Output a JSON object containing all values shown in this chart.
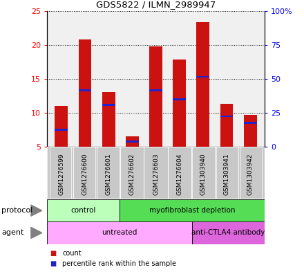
{
  "title": "GDS5822 / ILMN_2989947",
  "samples": [
    "GSM1276599",
    "GSM1276600",
    "GSM1276601",
    "GSM1276602",
    "GSM1276603",
    "GSM1276604",
    "GSM1303940",
    "GSM1303941",
    "GSM1303942"
  ],
  "count_values": [
    11.0,
    20.8,
    13.1,
    6.5,
    19.8,
    17.8,
    23.3,
    11.3,
    9.7
  ],
  "percentile_values": [
    7.5,
    13.3,
    11.2,
    5.8,
    13.3,
    12.0,
    15.3,
    9.5,
    8.5
  ],
  "ylim_left": [
    5,
    25
  ],
  "ylim_right": [
    0,
    100
  ],
  "yticks_left": [
    5,
    10,
    15,
    20,
    25
  ],
  "yticks_right": [
    0,
    25,
    50,
    75,
    100
  ],
  "ytick_labels_right": [
    "0",
    "25",
    "50",
    "75",
    "100%"
  ],
  "bar_color": "#cc1111",
  "percentile_color": "#2222cc",
  "bar_width": 0.55,
  "protocol_groups": [
    {
      "label": "control",
      "start": 0,
      "end": 3,
      "color": "#bbffbb"
    },
    {
      "label": "myofibroblast depletion",
      "start": 3,
      "end": 9,
      "color": "#55dd55"
    }
  ],
  "agent_groups": [
    {
      "label": "untreated",
      "start": 0,
      "end": 6,
      "color": "#ffaaff"
    },
    {
      "label": "anti-CTLA4 antibody",
      "start": 6,
      "end": 9,
      "color": "#dd66dd"
    }
  ],
  "legend_count_label": "count",
  "legend_percentile_label": "percentile rank within the sample",
  "protocol_label": "protocol",
  "agent_label": "agent",
  "plot_bg_color": "#f0f0f0",
  "label_bg_color": "#c8c8c8"
}
